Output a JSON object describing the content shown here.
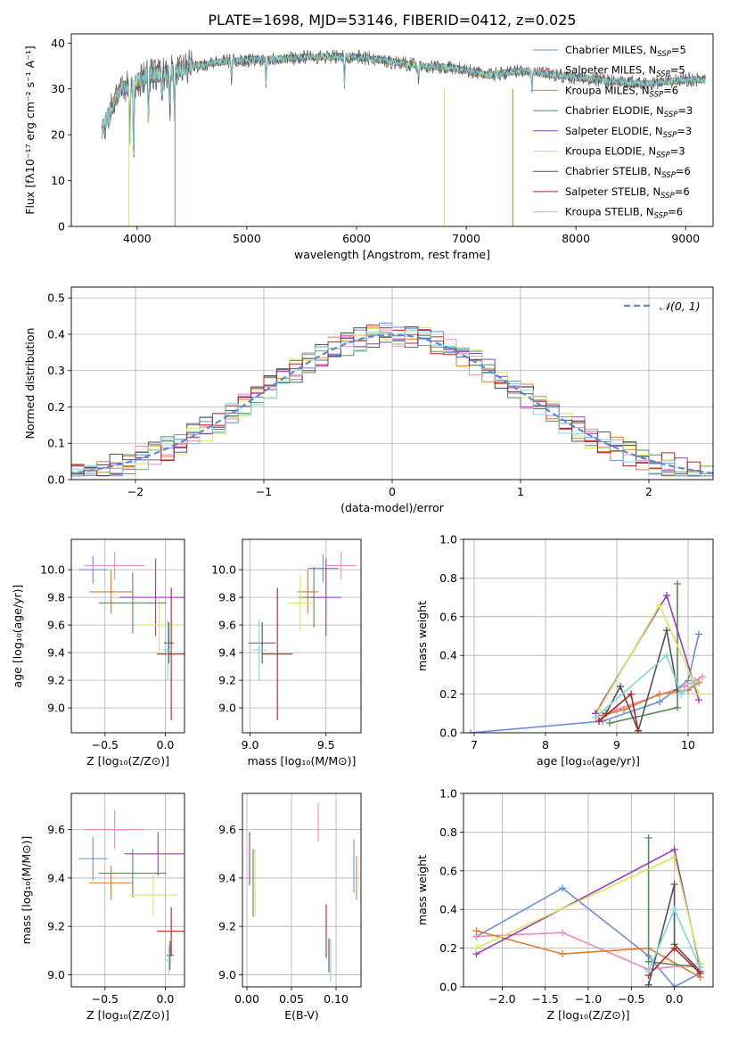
{
  "title": "PLATE=1698, MJD=53146, FIBERID=0412, z=0.025",
  "colors": {
    "chabrier_miles": "#6a8fd8",
    "salpeter_miles": "#e88ac0",
    "kroupa_miles": "#e07b2a",
    "chabrier_elodie": "#5a8a5a",
    "salpeter_elodie": "#9a3cb5",
    "kroupa_elodie": "#d4e85a",
    "chabrier_stelib": "#555555",
    "salpeter_stelib": "#b22222",
    "kroupa_stelib": "#7fd6e0"
  },
  "chart_data": [
    {
      "id": "spectrum",
      "type": "line",
      "xlabel": "wavelength [Angstrom, rest frame]",
      "ylabel": "Flux [fλ10⁻¹⁷ erg cm⁻² s⁻¹ A⁻¹]",
      "xlim": [
        3400,
        9250
      ],
      "ylim": [
        0,
        42
      ],
      "xticks": [
        4000,
        5000,
        6000,
        7000,
        8000,
        9000
      ],
      "yticks": [
        0,
        10,
        20,
        30,
        40
      ],
      "legend_position": "top-right",
      "legend": [
        {
          "label": "Chabrier MILES, N",
          "sub": "SSP",
          "tail": "=5",
          "color_key": "chabrier_miles"
        },
        {
          "label": "Salpeter MILES, N",
          "sub": "SSP",
          "tail": "=5",
          "color_key": "salpeter_miles"
        },
        {
          "label": "Kroupa MILES, N",
          "sub": "SSP",
          "tail": "=6",
          "color_key": "kroupa_miles"
        },
        {
          "label": "Chabrier ELODIE, N",
          "sub": "SSP",
          "tail": "=3",
          "color_key": "chabrier_elodie"
        },
        {
          "label": "Salpeter ELODIE, N",
          "sub": "SSP",
          "tail": "=3",
          "color_key": "salpeter_elodie"
        },
        {
          "label": "Kroupa ELODIE, N",
          "sub": "SSP",
          "tail": "=3",
          "color_key": "kroupa_elodie"
        },
        {
          "label": "Chabrier STELIB, N",
          "sub": "SSP",
          "tail": "=6",
          "color_key": "chabrier_stelib"
        },
        {
          "label": "Salpeter STELIB, N",
          "sub": "SSP",
          "tail": "=6",
          "color_key": "salpeter_stelib"
        },
        {
          "label": "Kroupa STELIB, N",
          "sub": "SSP",
          "tail": "=6",
          "color_key": "kroupa_stelib"
        }
      ],
      "continuum": [
        [
          3680,
          21
        ],
        [
          3750,
          25
        ],
        [
          3850,
          30
        ],
        [
          3950,
          31
        ],
        [
          4100,
          33
        ],
        [
          4300,
          33.5
        ],
        [
          4500,
          35
        ],
        [
          4800,
          36
        ],
        [
          5200,
          36.5
        ],
        [
          5600,
          37
        ],
        [
          6000,
          37
        ],
        [
          6300,
          36
        ],
        [
          6600,
          35
        ],
        [
          6900,
          34.5
        ],
        [
          7200,
          33
        ],
        [
          7500,
          34
        ],
        [
          7800,
          33
        ],
        [
          8200,
          32
        ],
        [
          8600,
          31
        ],
        [
          9000,
          32
        ],
        [
          9180,
          32
        ]
      ],
      "absorption_lines": [
        [
          3933,
          13
        ],
        [
          3968,
          16
        ],
        [
          4102,
          10
        ],
        [
          4226,
          5
        ],
        [
          4300,
          8
        ],
        [
          4340,
          9
        ],
        [
          4861,
          4
        ],
        [
          5175,
          5
        ],
        [
          5890,
          6
        ],
        [
          6563,
          3
        ],
        [
          7600,
          4
        ]
      ],
      "dropouts": [
        {
          "x": 3925,
          "y": 0,
          "color_key": "kroupa_elodie"
        },
        {
          "x": 4345,
          "y": 0,
          "color_key": "chabrier_miles"
        },
        {
          "x": 6800,
          "y": 0,
          "color_key": "kroupa_elodie"
        },
        {
          "x": 7425,
          "y": 0,
          "color_key": "kroupa_miles"
        }
      ]
    },
    {
      "id": "residuals",
      "type": "histogram",
      "xlabel": "(data-model)/error",
      "ylabel": "Normed distribution",
      "xlim": [
        -2.5,
        2.5
      ],
      "ylim": [
        0,
        0.53
      ],
      "xticks": [
        -2,
        -1,
        0,
        1,
        2
      ],
      "yticks": [
        0.0,
        0.1,
        0.2,
        0.3,
        0.4,
        0.5
      ],
      "legend_position": "top-right",
      "reference_label": "𝒩(0, 1)",
      "bin_width": 0.1,
      "series_order": [
        "chabrier_miles",
        "salpeter_miles",
        "kroupa_miles",
        "chabrier_elodie",
        "salpeter_elodie",
        "kroupa_elodie",
        "chabrier_stelib",
        "salpeter_stelib",
        "kroupa_stelib"
      ]
    },
    {
      "id": "age_vs_z",
      "type": "errorbar",
      "xlabel": "Z [log₁₀(Z/Z⊙)]",
      "ylabel": "age  [log₁₀(age/yr)]",
      "xlim": [
        -0.78,
        0.16
      ],
      "ylim": [
        8.82,
        10.22
      ],
      "xticks": [
        -0.5,
        0.0
      ],
      "yticks": [
        9.0,
        9.2,
        9.4,
        9.6,
        9.8,
        10.0
      ],
      "points": [
        {
          "c": "chabrier_miles",
          "x": -0.6,
          "y": 10.0,
          "xe": 0.12,
          "ye": 0.1
        },
        {
          "c": "salpeter_miles",
          "x": -0.42,
          "y": 10.03,
          "xe": 0.25,
          "ye": 0.1
        },
        {
          "c": "kroupa_miles",
          "x": -0.45,
          "y": 9.84,
          "xe": 0.18,
          "ye": 0.16
        },
        {
          "c": "chabrier_elodie",
          "x": -0.27,
          "y": 9.76,
          "xe": 0.28,
          "ye": 0.22
        },
        {
          "c": "salpeter_elodie",
          "x": -0.08,
          "y": 9.8,
          "xe": 0.3,
          "ye": 0.28
        },
        {
          "c": "kroupa_elodie",
          "x": -0.05,
          "y": 9.6,
          "xe": 0.2,
          "ye": 0.2
        },
        {
          "c": "chabrier_stelib",
          "x": 0.03,
          "y": 9.47,
          "xe": 0.04,
          "ye": 0.15
        },
        {
          "c": "salpeter_stelib",
          "x": 0.05,
          "y": 9.39,
          "xe": 0.12,
          "ye": 0.48
        },
        {
          "c": "kroupa_stelib",
          "x": 0.02,
          "y": 9.42,
          "xe": 0.04,
          "ye": 0.22
        }
      ]
    },
    {
      "id": "age_vs_mass",
      "type": "errorbar",
      "xlabel": "mass [log₁₀(M/M⊙)]",
      "ylabel": "",
      "xlim": [
        8.95,
        9.73
      ],
      "ylim": [
        8.82,
        10.22
      ],
      "xticks": [
        9.0,
        9.5
      ],
      "yticks": [
        9.0,
        9.2,
        9.4,
        9.6,
        9.8,
        10.0
      ],
      "points": [
        {
          "c": "chabrier_miles",
          "x": 9.48,
          "y": 10.01,
          "xe": 0.1,
          "ye": 0.1
        },
        {
          "c": "salpeter_miles",
          "x": 9.6,
          "y": 10.03,
          "xe": 0.1,
          "ye": 0.1
        },
        {
          "c": "kroupa_miles",
          "x": 9.38,
          "y": 9.84,
          "xe": 0.07,
          "ye": 0.16
        },
        {
          "c": "chabrier_elodie",
          "x": 9.42,
          "y": 9.8,
          "xe": 0.1,
          "ye": 0.22
        },
        {
          "c": "salpeter_elodie",
          "x": 9.5,
          "y": 9.8,
          "xe": 0.1,
          "ye": 0.28
        },
        {
          "c": "kroupa_elodie",
          "x": 9.33,
          "y": 9.76,
          "xe": 0.08,
          "ye": 0.2
        },
        {
          "c": "chabrier_stelib",
          "x": 9.08,
          "y": 9.47,
          "xe": 0.09,
          "ye": 0.15
        },
        {
          "c": "salpeter_stelib",
          "x": 9.18,
          "y": 9.39,
          "xe": 0.1,
          "ye": 0.48
        },
        {
          "c": "kroupa_stelib",
          "x": 9.06,
          "y": 9.42,
          "xe": 0.05,
          "ye": 0.22
        }
      ]
    },
    {
      "id": "weight_vs_age",
      "type": "line",
      "xlabel": "age  [log₁₀(age/yr)]",
      "ylabel": "mass weight",
      "xlim": [
        6.85,
        10.35
      ],
      "ylim": [
        0,
        1.0
      ],
      "xticks": [
        7,
        8,
        9,
        10
      ],
      "yticks": [
        0.0,
        0.2,
        0.4,
        0.6,
        0.8,
        1.0
      ],
      "series": [
        {
          "c": "chabrier_miles",
          "pts": [
            [
              6.95,
              0.0
            ],
            [
              8.8,
              0.06
            ],
            [
              9.6,
              0.16
            ],
            [
              10.0,
              0.27
            ],
            [
              10.15,
              0.51
            ]
          ]
        },
        {
          "c": "salpeter_miles",
          "pts": [
            [
              8.75,
              0.07
            ],
            [
              9.0,
              0.12
            ],
            [
              9.95,
              0.24
            ],
            [
              10.1,
              0.27
            ],
            [
              10.2,
              0.29
            ]
          ]
        },
        {
          "c": "kroupa_miles",
          "pts": [
            [
              8.8,
              0.09
            ],
            [
              9.1,
              0.12
            ],
            [
              9.6,
              0.2
            ],
            [
              10.0,
              0.22
            ],
            [
              10.15,
              0.26
            ]
          ]
        },
        {
          "c": "chabrier_elodie",
          "pts": [
            [
              8.9,
              0.05
            ],
            [
              9.85,
              0.13
            ],
            [
              9.85,
              0.77
            ]
          ]
        },
        {
          "c": "salpeter_elodie",
          "pts": [
            [
              8.7,
              0.1
            ],
            [
              9.7,
              0.71
            ],
            [
              10.15,
              0.17
            ]
          ]
        },
        {
          "c": "kroupa_elodie",
          "pts": [
            [
              8.75,
              0.12
            ],
            [
              9.6,
              0.66
            ],
            [
              10.15,
              0.2
            ]
          ]
        },
        {
          "c": "chabrier_stelib",
          "pts": [
            [
              8.85,
              0.1
            ],
            [
              9.05,
              0.24
            ],
            [
              9.3,
              0.01
            ],
            [
              9.7,
              0.53
            ],
            [
              9.85,
              0.22
            ]
          ]
        },
        {
          "c": "salpeter_stelib",
          "pts": [
            [
              8.75,
              0.06
            ],
            [
              9.2,
              0.2
            ],
            [
              9.3,
              0.01
            ]
          ]
        },
        {
          "c": "kroupa_stelib",
          "pts": [
            [
              8.7,
              0.08
            ],
            [
              9.7,
              0.4
            ],
            [
              9.9,
              0.2
            ],
            [
              10.1,
              0.26
            ]
          ]
        }
      ]
    },
    {
      "id": "mass_vs_z",
      "type": "errorbar",
      "xlabel": "Z [log₁₀(Z/Z⊙)]",
      "ylabel": "mass [log₁₀(M/M⊙)]",
      "xlim": [
        -0.78,
        0.16
      ],
      "ylim": [
        8.95,
        9.75
      ],
      "xticks": [
        -0.5,
        0.0
      ],
      "yticks": [
        9.0,
        9.2,
        9.4,
        9.6
      ],
      "points": [
        {
          "c": "chabrier_miles",
          "x": -0.6,
          "y": 9.48,
          "xe": 0.12,
          "ye": 0.09
        },
        {
          "c": "salpeter_miles",
          "x": -0.42,
          "y": 9.6,
          "xe": 0.25,
          "ye": 0.08
        },
        {
          "c": "kroupa_miles",
          "x": -0.45,
          "y": 9.38,
          "xe": 0.18,
          "ye": 0.07
        },
        {
          "c": "chabrier_elodie",
          "x": -0.27,
          "y": 9.42,
          "xe": 0.28,
          "ye": 0.1
        },
        {
          "c": "salpeter_elodie",
          "x": -0.06,
          "y": 9.5,
          "xe": 0.28,
          "ye": 0.09
        },
        {
          "c": "kroupa_elodie",
          "x": -0.1,
          "y": 9.33,
          "xe": 0.2,
          "ye": 0.09
        },
        {
          "c": "chabrier_stelib",
          "x": 0.04,
          "y": 9.08,
          "xe": 0.03,
          "ye": 0.06
        },
        {
          "c": "salpeter_stelib",
          "x": 0.05,
          "y": 9.18,
          "xe": 0.12,
          "ye": 0.1
        },
        {
          "c": "kroupa_stelib",
          "x": 0.03,
          "y": 9.06,
          "xe": 0.03,
          "ye": 0.06
        }
      ]
    },
    {
      "id": "mass_vs_ebv",
      "type": "errorbar",
      "xlabel": "E(B-V)",
      "ylabel": "",
      "xlim": [
        -0.005,
        0.128
      ],
      "ylim": [
        8.95,
        9.75
      ],
      "xticks": [
        0.0,
        0.05,
        0.1
      ],
      "yticks": [
        9.0,
        9.2,
        9.4,
        9.6
      ],
      "points": [
        {
          "c": "chabrier_miles",
          "x": 0.12,
          "y": 9.45,
          "xe": 0,
          "ye": 0.11
        },
        {
          "c": "salpeter_miles",
          "x": 0.08,
          "y": 9.63,
          "xe": 0,
          "ye": 0.08
        },
        {
          "c": "kroupa_miles",
          "x": 0.123,
          "y": 9.4,
          "xe": 0,
          "ye": 0.09
        },
        {
          "c": "chabrier_elodie",
          "x": 0.007,
          "y": 9.38,
          "xe": 0,
          "ye": 0.14
        },
        {
          "c": "salpeter_elodie",
          "x": 0.003,
          "y": 9.48,
          "xe": 0,
          "ye": 0.11
        },
        {
          "c": "kroupa_elodie",
          "x": 0.009,
          "y": 9.38,
          "xe": 0,
          "ye": 0.14
        },
        {
          "c": "chabrier_stelib",
          "x": 0.092,
          "y": 9.08,
          "xe": 0,
          "ye": 0.07
        },
        {
          "c": "salpeter_stelib",
          "x": 0.089,
          "y": 9.18,
          "xe": 0,
          "ye": 0.11
        },
        {
          "c": "kroupa_stelib",
          "x": 0.094,
          "y": 9.06,
          "xe": 0,
          "ye": 0.09
        }
      ]
    },
    {
      "id": "weight_vs_z",
      "type": "line",
      "xlabel": "Z [log₁₀(Z/Z⊙)]",
      "ylabel": "mass weight",
      "xlim": [
        -2.45,
        0.45
      ],
      "ylim": [
        0,
        1.0
      ],
      "xticks": [
        -2.0,
        -1.5,
        -1.0,
        -0.5,
        0.0
      ],
      "yticks": [
        0.0,
        0.2,
        0.4,
        0.6,
        0.8,
        1.0
      ],
      "series": [
        {
          "c": "chabrier_miles",
          "pts": [
            [
              -2.3,
              0.26
            ],
            [
              -1.3,
              0.51
            ],
            [
              -0.3,
              0.16
            ],
            [
              0.0,
              0.0
            ],
            [
              0.3,
              0.07
            ]
          ]
        },
        {
          "c": "salpeter_miles",
          "pts": [
            [
              -2.3,
              0.26
            ],
            [
              -1.3,
              0.28
            ],
            [
              -0.3,
              0.09
            ],
            [
              0.3,
              0.12
            ]
          ]
        },
        {
          "c": "kroupa_miles",
          "pts": [
            [
              -2.3,
              0.29
            ],
            [
              -1.3,
              0.17
            ],
            [
              -0.3,
              0.2
            ],
            [
              0.3,
              0.05
            ]
          ]
        },
        {
          "c": "chabrier_elodie",
          "pts": [
            [
              -0.3,
              0.77
            ],
            [
              -0.3,
              0.13
            ],
            [
              0.3,
              0.1
            ]
          ]
        },
        {
          "c": "salpeter_elodie",
          "pts": [
            [
              -2.3,
              0.17
            ],
            [
              0.0,
              0.71
            ],
            [
              0.3,
              0.1
            ]
          ]
        },
        {
          "c": "kroupa_elodie",
          "pts": [
            [
              -2.3,
              0.2
            ],
            [
              0.0,
              0.67
            ],
            [
              0.3,
              0.12
            ]
          ]
        },
        {
          "c": "chabrier_stelib",
          "pts": [
            [
              -0.3,
              0.01
            ],
            [
              0.0,
              0.53
            ],
            [
              0.0,
              0.22
            ],
            [
              0.3,
              0.08
            ]
          ]
        },
        {
          "c": "salpeter_stelib",
          "pts": [
            [
              -0.3,
              0.06
            ],
            [
              0.0,
              0.2
            ],
            [
              0.3,
              0.07
            ]
          ]
        },
        {
          "c": "kroupa_stelib",
          "pts": [
            [
              -0.3,
              0.08
            ],
            [
              0.0,
              0.4
            ],
            [
              0.3,
              0.1
            ]
          ]
        }
      ]
    }
  ]
}
